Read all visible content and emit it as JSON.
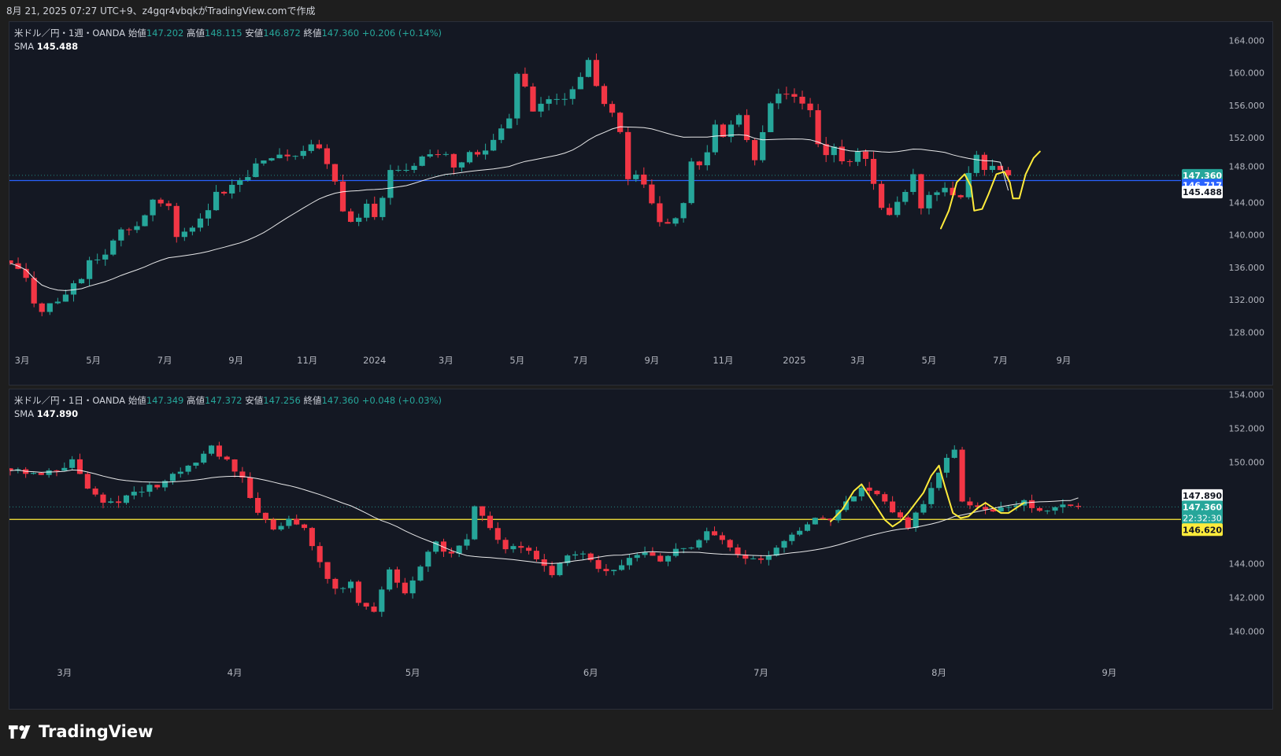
{
  "header": {
    "caption": "8月 21, 2025 07:27 UTC+9、z4gqr4vbqkがTradingView.comで作成"
  },
  "brand": {
    "name": "TradingView",
    "logo_icon": "tradingview-logo-icon"
  },
  "colors": {
    "up": "#26a69a",
    "down": "#f23645",
    "sma": "#ffffff",
    "drawing": "#ffeb3b",
    "pane_bg": "#141823",
    "grid_text": "#b2b5be"
  },
  "charts": [
    {
      "id": "weekly",
      "legend": {
        "symbol": "米ドル／円・1週・OANDA",
        "open_label": "始値",
        "open": "147.202",
        "high_label": "高値",
        "high": "148.115",
        "low_label": "安値",
        "low": "146.872",
        "close_label": "終値",
        "close": "147.360",
        "change": "+0.206 (+0.14%)",
        "sma_label": "SMA",
        "sma_value": "145.488"
      },
      "price_labels": {
        "current": "147.360",
        "countdown": "1d 23h",
        "hline": "146.717",
        "sma": "145.488",
        "partial": "148.000"
      }
    },
    {
      "id": "daily",
      "legend": {
        "symbol": "米ドル／円・1日・OANDA",
        "open_label": "始値",
        "open": "147.349",
        "high_label": "高値",
        "high": "147.372",
        "low_label": "安値",
        "low": "147.256",
        "close_label": "終値",
        "close": "147.360",
        "change": "+0.048 (+0.03%)",
        "sma_label": "SMA",
        "sma_value": "147.890"
      },
      "price_labels": {
        "current": "147.360",
        "countdown": "22:32:30",
        "hline": "146.620",
        "sma": "147.890"
      }
    }
  ],
  "chart_data": [
    {
      "type": "candlestick",
      "title": "米ドル／円・1週・OANDA",
      "ylim": [
        125.5,
        165.5
      ],
      "yticks": [
        128,
        132,
        136,
        140,
        144,
        148,
        152,
        156,
        160,
        164
      ],
      "ytick_labels": [
        "128.000",
        "132.000",
        "136.000",
        "140.000",
        "144.000",
        "",
        "152.000",
        "156.000",
        "160.000",
        "164.000"
      ],
      "xlim": [
        0,
        143
      ],
      "xticks": [
        {
          "x": 1.5,
          "label": "3月"
        },
        {
          "x": 10.5,
          "label": "5月"
        },
        {
          "x": 19.5,
          "label": "7月"
        },
        {
          "x": 28.5,
          "label": "9月"
        },
        {
          "x": 37.5,
          "label": "11月"
        },
        {
          "x": 46,
          "label": "2024"
        },
        {
          "x": 55,
          "label": "3月"
        },
        {
          "x": 64,
          "label": "5月"
        },
        {
          "x": 72,
          "label": "7月"
        },
        {
          "x": 81,
          "label": "9月"
        },
        {
          "x": 90,
          "label": "11月"
        },
        {
          "x": 99,
          "label": "2025"
        },
        {
          "x": 107,
          "label": "3月"
        },
        {
          "x": 116,
          "label": "5月"
        },
        {
          "x": 125,
          "label": "7月"
        },
        {
          "x": 133,
          "label": "9月"
        }
      ],
      "waypoints": [
        [
          0,
          136.5
        ],
        [
          2,
          134.5
        ],
        [
          3,
          131.5
        ],
        [
          4,
          130.2
        ],
        [
          5,
          131.2
        ],
        [
          7,
          133
        ],
        [
          9,
          134.5
        ],
        [
          10,
          136.5
        ],
        [
          12,
          137.5
        ],
        [
          14,
          140.5
        ],
        [
          16,
          141.5
        ],
        [
          18,
          144.2
        ],
        [
          20,
          144
        ],
        [
          21,
          139.5
        ],
        [
          22,
          140.5
        ],
        [
          24,
          142
        ],
        [
          26,
          145
        ],
        [
          28,
          146
        ],
        [
          30,
          147.5
        ],
        [
          32,
          149.3
        ],
        [
          34,
          149.5
        ],
        [
          36,
          149.7
        ],
        [
          38,
          151.5
        ],
        [
          39,
          150.5
        ],
        [
          40,
          149
        ],
        [
          41,
          147
        ],
        [
          42,
          143.3
        ],
        [
          43,
          142
        ],
        [
          44,
          142.5
        ],
        [
          45,
          143.8
        ],
        [
          46,
          142.2
        ],
        [
          47,
          145
        ],
        [
          48,
          148
        ],
        [
          50,
          148.2
        ],
        [
          52,
          149.5
        ],
        [
          54,
          150.3
        ],
        [
          55,
          150
        ],
        [
          56,
          148.4
        ],
        [
          58,
          150
        ],
        [
          60,
          150.2
        ],
        [
          61,
          151.5
        ],
        [
          62,
          153
        ],
        [
          63,
          154.6
        ],
        [
          64,
          159.8
        ],
        [
          65,
          158
        ],
        [
          66,
          155
        ],
        [
          67,
          156
        ],
        [
          68,
          157
        ],
        [
          70,
          157.2
        ],
        [
          71,
          158
        ],
        [
          72,
          159.8
        ],
        [
          73,
          161.5
        ],
        [
          74,
          158
        ],
        [
          75,
          156.5
        ],
        [
          76,
          155
        ],
        [
          77,
          152.5
        ],
        [
          78,
          147
        ],
        [
          79,
          147.3
        ],
        [
          80,
          146
        ],
        [
          81,
          143.5
        ],
        [
          82,
          141.5
        ],
        [
          83,
          141.2
        ],
        [
          84,
          142.5
        ],
        [
          85,
          144
        ],
        [
          86,
          149
        ],
        [
          87,
          149
        ],
        [
          88,
          150.3
        ],
        [
          89,
          153.5
        ],
        [
          90,
          152
        ],
        [
          91,
          153.5
        ],
        [
          92,
          154.5
        ],
        [
          93,
          152
        ],
        [
          94,
          149.5
        ],
        [
          95,
          153
        ],
        [
          96,
          156
        ],
        [
          97,
          157.8
        ],
        [
          98,
          157.5
        ],
        [
          100,
          156.2
        ],
        [
          101,
          155.5
        ],
        [
          102,
          151.5
        ],
        [
          103,
          149.5
        ],
        [
          104,
          150.5
        ],
        [
          105,
          149
        ],
        [
          106,
          148.8
        ],
        [
          107,
          150
        ],
        [
          108,
          149.5
        ],
        [
          109,
          146.5
        ],
        [
          110,
          143.5
        ],
        [
          111,
          142.3
        ],
        [
          112,
          144
        ],
        [
          113,
          145.5
        ],
        [
          114,
          147.5
        ],
        [
          115,
          143.5
        ],
        [
          116,
          144.5
        ],
        [
          117,
          145
        ],
        [
          118,
          146
        ],
        [
          119,
          145
        ],
        [
          120,
          144.3
        ],
        [
          121,
          147.5
        ],
        [
          122,
          149.8
        ],
        [
          123,
          148.3
        ],
        [
          124,
          148.3
        ],
        [
          125,
          147.8
        ],
        [
          126,
          147.36
        ]
      ],
      "candles": "generated by interpolating waypoints (open = previous close)",
      "sma_label": "SMA",
      "sma_last": 145.488,
      "horizontal_line": {
        "value": 146.717,
        "color": "#2962ff"
      },
      "drawing_path": [
        [
          117.5,
          140.8
        ],
        [
          118.5,
          143
        ],
        [
          119.5,
          146.5
        ],
        [
          120.5,
          147.5
        ],
        [
          121.3,
          146
        ],
        [
          121.7,
          143
        ],
        [
          122.7,
          143.2
        ],
        [
          123.5,
          145
        ],
        [
          124.5,
          147.5
        ],
        [
          125.5,
          147.8
        ],
        [
          126.2,
          146.5
        ],
        [
          126.6,
          144.5
        ],
        [
          127.4,
          144.5
        ],
        [
          128.2,
          147.5
        ],
        [
          129.2,
          149.5
        ],
        [
          130,
          150.3
        ]
      ]
    },
    {
      "type": "candlestick",
      "title": "米ドル／円・1日・OANDA",
      "ylim": [
        138.5,
        154.3
      ],
      "yticks": [
        140,
        142,
        144,
        146,
        148,
        150,
        152,
        154
      ],
      "ytick_labels": [
        "140.000",
        "142.000",
        "144.000",
        "",
        "",
        "150.000",
        "152.000",
        "154.000"
      ],
      "xlim": [
        0,
        148
      ],
      "xticks": [
        {
          "x": 7,
          "label": "3月"
        },
        {
          "x": 29,
          "label": "4月"
        },
        {
          "x": 52,
          "label": "5月"
        },
        {
          "x": 75,
          "label": "6月"
        },
        {
          "x": 97,
          "label": "7月"
        },
        {
          "x": 120,
          "label": "8月"
        },
        {
          "x": 142,
          "label": "9月"
        }
      ],
      "waypoints": [
        [
          0,
          149.5
        ],
        [
          3,
          149.3
        ],
        [
          6,
          149.6
        ],
        [
          8,
          150
        ],
        [
          10,
          148.5
        ],
        [
          12,
          147.6
        ],
        [
          14,
          147.6
        ],
        [
          16,
          148.2
        ],
        [
          18,
          148.5
        ],
        [
          20,
          148.8
        ],
        [
          22,
          149.5
        ],
        [
          24,
          150.1
        ],
        [
          26,
          151
        ],
        [
          28,
          150
        ],
        [
          30,
          149
        ],
        [
          32,
          147
        ],
        [
          34,
          146
        ],
        [
          36,
          146.5
        ],
        [
          38,
          146
        ],
        [
          40,
          144
        ],
        [
          42,
          142.5
        ],
        [
          44,
          142.8
        ],
        [
          45,
          141.8
        ],
        [
          47,
          141.3
        ],
        [
          49,
          143.8
        ],
        [
          51,
          142.2
        ],
        [
          53,
          144
        ],
        [
          55,
          145.2
        ],
        [
          57,
          144.5
        ],
        [
          59,
          145.5
        ],
        [
          60,
          147.5
        ],
        [
          62,
          146.2
        ],
        [
          64,
          144.8
        ],
        [
          66,
          145
        ],
        [
          68,
          144.2
        ],
        [
          70,
          143.5
        ],
        [
          72,
          144.4
        ],
        [
          74,
          144.7
        ],
        [
          76,
          143.6
        ],
        [
          78,
          143.8
        ],
        [
          80,
          144.2
        ],
        [
          82,
          144.8
        ],
        [
          84,
          144.3
        ],
        [
          86,
          144.8
        ],
        [
          88,
          145
        ],
        [
          90,
          146
        ],
        [
          92,
          145.5
        ],
        [
          94,
          144.6
        ],
        [
          96,
          144.3
        ],
        [
          98,
          144.5
        ],
        [
          100,
          145.5
        ],
        [
          102,
          146
        ],
        [
          104,
          146.8
        ],
        [
          106,
          146.5
        ],
        [
          108,
          147.8
        ],
        [
          110,
          148.5
        ],
        [
          112,
          148.2
        ],
        [
          114,
          147
        ],
        [
          116,
          146.2
        ],
        [
          118,
          147.5
        ],
        [
          120,
          149.5
        ],
        [
          122,
          150.7
        ],
        [
          123,
          147.8
        ],
        [
          125,
          147.3
        ],
        [
          127,
          147
        ],
        [
          129,
          147.4
        ],
        [
          131,
          147.7
        ],
        [
          133,
          147.2
        ],
        [
          135,
          147.3
        ],
        [
          137,
          147.5
        ],
        [
          138,
          147.36
        ]
      ],
      "candles": "generated by interpolating waypoints (open = previous close)",
      "sma_label": "SMA",
      "sma_last": 147.89,
      "horizontal_line": {
        "value": 146.62,
        "color": "#ffeb3b"
      },
      "drawing_path": [
        [
          106,
          146.5
        ],
        [
          107.5,
          147.2
        ],
        [
          109,
          148.3
        ],
        [
          110,
          148.7
        ],
        [
          111,
          148
        ],
        [
          112,
          147.3
        ],
        [
          113,
          146.6
        ],
        [
          114,
          146.2
        ],
        [
          115,
          146.5
        ],
        [
          116,
          147
        ],
        [
          117,
          147.6
        ],
        [
          118,
          148.2
        ],
        [
          119,
          149.2
        ],
        [
          120,
          149.8
        ],
        [
          120.8,
          148.5
        ],
        [
          121.8,
          147
        ],
        [
          122.8,
          146.7
        ],
        [
          123.8,
          146.8
        ],
        [
          125,
          147.3
        ],
        [
          126,
          147.6
        ],
        [
          127,
          147.3
        ],
        [
          128,
          147
        ],
        [
          129,
          147
        ],
        [
          130,
          147.3
        ],
        [
          131,
          147.6
        ]
      ]
    }
  ]
}
